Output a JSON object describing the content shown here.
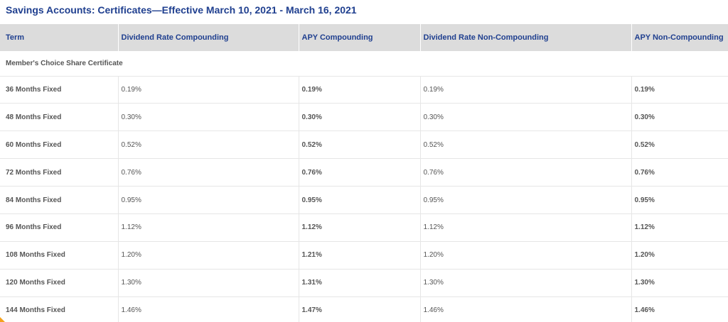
{
  "title": "Savings Accounts: Certificates—Effective March 10, 2021 - March 16, 2021",
  "table": {
    "headers": [
      "Term",
      "Dividend Rate Compounding",
      "APY Compounding",
      "Dividend Rate Non-Compounding",
      "APY Non-Compounding"
    ],
    "group_label": "Member's Choice Share Certificate",
    "rows": [
      [
        "36 Months Fixed",
        "0.19%",
        "0.19%",
        "0.19%",
        "0.19%"
      ],
      [
        "48 Months Fixed",
        "0.30%",
        "0.30%",
        "0.30%",
        "0.30%"
      ],
      [
        "60 Months Fixed",
        "0.52%",
        "0.52%",
        "0.52%",
        "0.52%"
      ],
      [
        "72 Months Fixed",
        "0.76%",
        "0.76%",
        "0.76%",
        "0.76%"
      ],
      [
        "84 Months Fixed",
        "0.95%",
        "0.95%",
        "0.95%",
        "0.95%"
      ],
      [
        "96 Months Fixed",
        "1.12%",
        "1.12%",
        "1.12%",
        "1.12%"
      ],
      [
        "108 Months Fixed",
        "1.20%",
        "1.21%",
        "1.20%",
        "1.20%"
      ],
      [
        "120 Months Fixed",
        "1.30%",
        "1.31%",
        "1.30%",
        "1.30%"
      ],
      [
        "144 Months Fixed",
        "1.46%",
        "1.47%",
        "1.46%",
        "1.46%"
      ]
    ]
  },
  "colors": {
    "title": "#1f3f8f",
    "header_bg": "#dcdcdc",
    "text": "#555555",
    "accent": "#f4a11d"
  }
}
